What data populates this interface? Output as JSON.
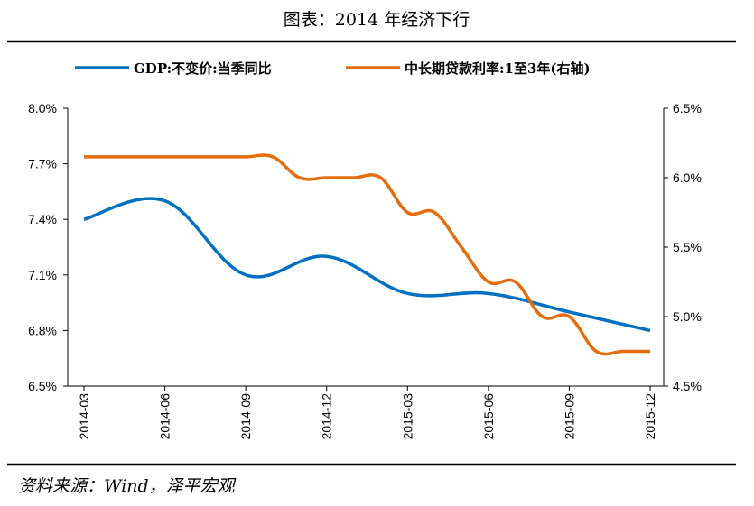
{
  "title": "图表：2014 年经济下行",
  "source": "资料来源：Wind，泽平宏观",
  "chart_data": {
    "type": "line",
    "x": [
      "2014-03",
      "2014-04",
      "2014-05",
      "2014-06",
      "2014-07",
      "2014-08",
      "2014-09",
      "2014-10",
      "2014-11",
      "2014-12",
      "2015-01",
      "2015-02",
      "2015-03",
      "2015-04",
      "2015-05",
      "2015-06",
      "2015-07",
      "2015-08",
      "2015-09",
      "2015-10",
      "2015-11",
      "2015-12"
    ],
    "x_tick_labels": [
      "2014-03",
      "2014-06",
      "2014-09",
      "2014-12",
      "2015-03",
      "2015-06",
      "2015-09",
      "2015-12"
    ],
    "series": [
      {
        "name": "GDP:不变价:当季同比",
        "axis": "left",
        "color": "#0070C0",
        "x": [
          "2014-03",
          "2014-06",
          "2014-09",
          "2014-12",
          "2015-03",
          "2015-06",
          "2015-09",
          "2015-12"
        ],
        "values": [
          7.4,
          7.5,
          7.1,
          7.2,
          7.0,
          7.0,
          6.9,
          6.8
        ]
      },
      {
        "name": "中长期贷款利率:1至3年(右轴)",
        "axis": "right",
        "color": "#E46C0A",
        "x": [
          "2014-03",
          "2014-04",
          "2014-05",
          "2014-06",
          "2014-07",
          "2014-08",
          "2014-09",
          "2014-10",
          "2014-11",
          "2014-12",
          "2015-01",
          "2015-02",
          "2015-03",
          "2015-04",
          "2015-05",
          "2015-06",
          "2015-07",
          "2015-08",
          "2015-09",
          "2015-10",
          "2015-11",
          "2015-12"
        ],
        "values": [
          6.15,
          6.15,
          6.15,
          6.15,
          6.15,
          6.15,
          6.15,
          6.15,
          6.0,
          6.0,
          6.0,
          6.0,
          5.75,
          5.75,
          5.5,
          5.25,
          5.25,
          5.0,
          5.0,
          4.75,
          4.75,
          4.75
        ]
      }
    ],
    "y_left": {
      "ylim": [
        6.5,
        8.0
      ],
      "ticks": [
        "6.5%",
        "6.8%",
        "7.1%",
        "7.4%",
        "7.7%",
        "8.0%"
      ]
    },
    "y_right": {
      "ylim": [
        4.5,
        6.5
      ],
      "ticks": [
        "4.5%",
        "5.0%",
        "5.5%",
        "6.0%",
        "6.5%"
      ]
    },
    "grid": false,
    "legend": "top"
  }
}
